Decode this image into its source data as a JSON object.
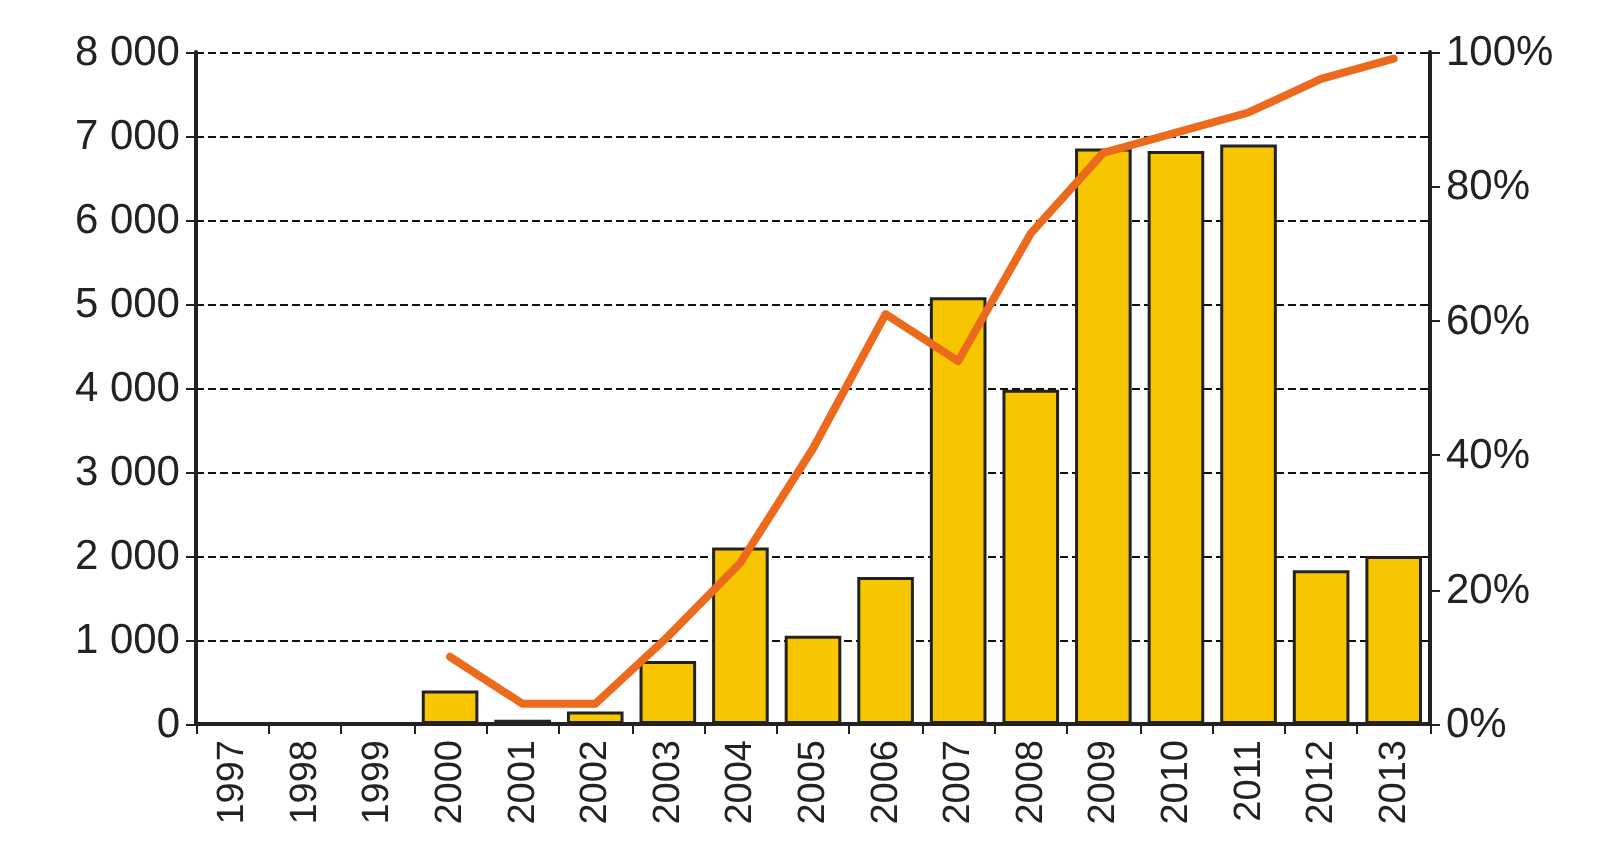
{
  "chart_data": {
    "type": "bar",
    "categories": [
      "1997",
      "1998",
      "1999",
      "2000",
      "2001",
      "2002",
      "2003",
      "2004",
      "2005",
      "2006",
      "2007",
      "2008",
      "2009",
      "2010",
      "2011",
      "2012",
      "2013"
    ],
    "series": [
      {
        "color": "#f7c600",
        "values": [
          null,
          null,
          null,
          400,
          50,
          150,
          750,
          2100,
          1050,
          1750,
          5080,
          3980,
          6850,
          6820,
          6900,
          1830,
          2000
        ]
      },
      {
        "type": "line",
        "axis": "y2",
        "color": "#ec6a1e",
        "values": [
          null,
          null,
          null,
          10,
          3,
          3,
          13,
          24,
          41,
          61,
          54,
          73,
          85,
          88,
          91,
          96,
          99
        ]
      }
    ],
    "ylim": [
      0,
      8000
    ],
    "yticks": [
      0,
      {
        "value": 1000,
        "label": "1 000"
      },
      {
        "value": 2000,
        "label": "2 000"
      },
      {
        "value": 3000,
        "label": "3 000"
      },
      {
        "value": 4000,
        "label": "4 000"
      },
      {
        "value": 5000,
        "label": "5 000"
      },
      {
        "value": 6000,
        "label": "6 000"
      },
      {
        "value": 7000,
        "label": "7 000"
      },
      {
        "value": 8000,
        "label": "8 000"
      }
    ],
    "y2lim": [
      0,
      100
    ],
    "y2ticks": [
      {
        "value": 0,
        "label": "0%"
      },
      {
        "value": 20,
        "label": "20%"
      },
      {
        "value": 40,
        "label": "40%"
      },
      {
        "value": 60,
        "label": "60%"
      },
      {
        "value": 80,
        "label": "80%"
      },
      {
        "value": 100,
        "label": "100%"
      }
    ],
    "grid": "y",
    "marker": "none",
    "line_style": "solid"
  }
}
